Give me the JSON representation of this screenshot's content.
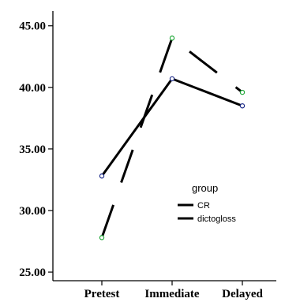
{
  "chart_data": {
    "type": "line",
    "categories": [
      "Pretest",
      "Immediate",
      "Delayed"
    ],
    "y_ticks": [
      "25.00",
      "30.00",
      "35.00",
      "40.00",
      "45.00"
    ],
    "ylim": [
      24.3,
      46.2
    ],
    "grid": false,
    "legend": {
      "title": "group",
      "placement": "center-right",
      "entries": [
        "CR",
        "dictogloss"
      ]
    },
    "series": [
      {
        "name": "CR",
        "values": [
          32.8,
          40.7,
          38.5
        ],
        "line_style": "solid",
        "marker_color": "#1f2d8a"
      },
      {
        "name": "dictogloss",
        "values": [
          27.8,
          44.0,
          39.6
        ],
        "line_style": "dashed",
        "marker_color": "#22a83a"
      }
    ],
    "colors": {
      "line": "#000000",
      "axis": "#000000"
    }
  }
}
